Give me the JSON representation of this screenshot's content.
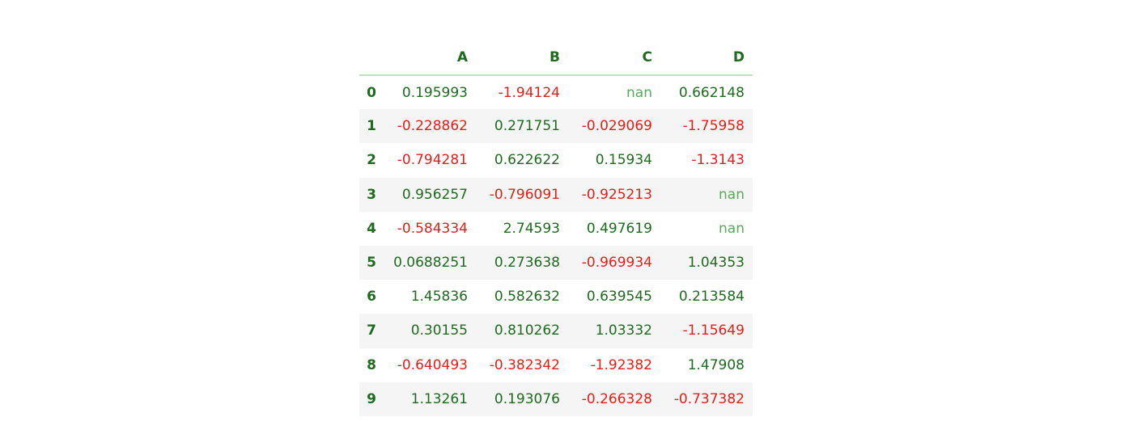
{
  "colors": {
    "header": "#1e6b1e",
    "positive": "#1e6b1e",
    "negative": "#e0201a",
    "nan": "#5aaa5a",
    "stripe": "#f5f5f5",
    "header_rule": "#bfe0bf"
  },
  "table": {
    "columns": [
      "A",
      "B",
      "C",
      "D"
    ],
    "rows": [
      {
        "index": "0",
        "values": [
          "0.195993",
          "-1.94124",
          "nan",
          "0.662148"
        ]
      },
      {
        "index": "1",
        "values": [
          "-0.228862",
          "0.271751",
          "-0.029069",
          "-1.75958"
        ]
      },
      {
        "index": "2",
        "values": [
          "-0.794281",
          "0.622622",
          "0.15934",
          "-1.3143"
        ]
      },
      {
        "index": "3",
        "values": [
          "0.956257",
          "-0.796091",
          "-0.925213",
          "nan"
        ]
      },
      {
        "index": "4",
        "values": [
          "-0.584334",
          "2.74593",
          "0.497619",
          "nan"
        ]
      },
      {
        "index": "5",
        "values": [
          "0.0688251",
          "0.273638",
          "-0.969934",
          "1.04353"
        ]
      },
      {
        "index": "6",
        "values": [
          "1.45836",
          "0.582632",
          "0.639545",
          "0.213584"
        ]
      },
      {
        "index": "7",
        "values": [
          "0.30155",
          "0.810262",
          "1.03332",
          "-1.15649"
        ]
      },
      {
        "index": "8",
        "values": [
          "-0.640493",
          "-0.382342",
          "-1.92382",
          "1.47908"
        ]
      },
      {
        "index": "9",
        "values": [
          "1.13261",
          "0.193076",
          "-0.266328",
          "-0.737382"
        ]
      }
    ]
  }
}
